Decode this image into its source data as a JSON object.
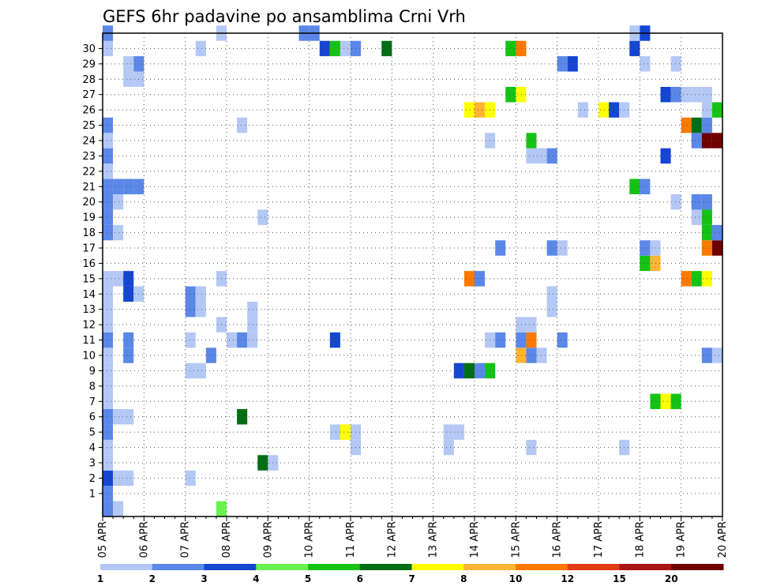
{
  "chart_data": {
    "type": "heatmap",
    "title": "GEFS 6hr padavine po ansamblima Crni Vrh",
    "x_tick_labels": [
      "05 APR",
      "06 APR",
      "07 APR",
      "08 APR",
      "09 APR",
      "10 APR",
      "11 APR",
      "12 APR",
      "13 APR",
      "14 APR",
      "15 APR",
      "16 APR",
      "17 APR",
      "18 APR",
      "19 APR",
      "20 APR"
    ],
    "y_tick_labels": [
      "1",
      "2",
      "3",
      "4",
      "5",
      "6",
      "7",
      "8",
      "9",
      "10",
      "11",
      "12",
      "13",
      "14",
      "15",
      "16",
      "17",
      "18",
      "19",
      "20",
      "21",
      "22",
      "23",
      "24",
      "25",
      "26",
      "27",
      "28",
      "29",
      "30"
    ],
    "xlim": [
      0,
      60
    ],
    "ylim": [
      0,
      30
    ],
    "x_unit": "6h steps since 05 APR 00z",
    "y_unit": "ensemble member",
    "grid": "dotted",
    "color_scale": {
      "labels": [
        "1",
        "2",
        "3",
        "4",
        "5",
        "6",
        "7",
        "8",
        "10",
        "12",
        "15",
        "20"
      ],
      "colors": [
        "#b4c8f5",
        "#5a87e8",
        "#1446d2",
        "#6cf250",
        "#14c314",
        "#006e14",
        "#ffff00",
        "#ffb432",
        "#ff7800",
        "#e13c14",
        "#aa1414",
        "#6e0000"
      ]
    },
    "cells": [
      {
        "x": 1,
        "y": 0,
        "v": 2
      },
      {
        "x": 2,
        "y": 0,
        "v": 1
      },
      {
        "x": 12,
        "y": 0,
        "v": 4
      },
      {
        "x": 1,
        "y": 1,
        "v": 2
      },
      {
        "x": 1,
        "y": 2,
        "v": 3
      },
      {
        "x": 2,
        "y": 2,
        "v": 1
      },
      {
        "x": 3,
        "y": 2,
        "v": 1
      },
      {
        "x": 9,
        "y": 2,
        "v": 1
      },
      {
        "x": 1,
        "y": 3,
        "v": 1
      },
      {
        "x": 16,
        "y": 3,
        "v": 6
      },
      {
        "x": 17,
        "y": 3,
        "v": 1
      },
      {
        "x": 1,
        "y": 4,
        "v": 1
      },
      {
        "x": 25,
        "y": 4,
        "v": 1
      },
      {
        "x": 34,
        "y": 4,
        "v": 1
      },
      {
        "x": 42,
        "y": 4,
        "v": 1
      },
      {
        "x": 51,
        "y": 4,
        "v": 1
      },
      {
        "x": 1,
        "y": 5,
        "v": 2
      },
      {
        "x": 23,
        "y": 5,
        "v": 1
      },
      {
        "x": 24,
        "y": 5,
        "v": 7
      },
      {
        "x": 25,
        "y": 5,
        "v": 1
      },
      {
        "x": 34,
        "y": 5,
        "v": 1
      },
      {
        "x": 35,
        "y": 5,
        "v": 1
      },
      {
        "x": 1,
        "y": 6,
        "v": 2
      },
      {
        "x": 2,
        "y": 6,
        "v": 1
      },
      {
        "x": 3,
        "y": 6,
        "v": 1
      },
      {
        "x": 14,
        "y": 6,
        "v": 6
      },
      {
        "x": 1,
        "y": 7,
        "v": 1
      },
      {
        "x": 54,
        "y": 7,
        "v": 5
      },
      {
        "x": 55,
        "y": 7,
        "v": 7
      },
      {
        "x": 56,
        "y": 7,
        "v": 5
      },
      {
        "x": 1,
        "y": 8,
        "v": 1
      },
      {
        "x": 1,
        "y": 9,
        "v": 1
      },
      {
        "x": 9,
        "y": 9,
        "v": 1
      },
      {
        "x": 10,
        "y": 9,
        "v": 1
      },
      {
        "x": 35,
        "y": 9,
        "v": 3
      },
      {
        "x": 36,
        "y": 9,
        "v": 6
      },
      {
        "x": 37,
        "y": 9,
        "v": 2
      },
      {
        "x": 38,
        "y": 9,
        "v": 5
      },
      {
        "x": 1,
        "y": 10,
        "v": 1
      },
      {
        "x": 3,
        "y": 10,
        "v": 2
      },
      {
        "x": 11,
        "y": 10,
        "v": 2
      },
      {
        "x": 41,
        "y": 10,
        "v": 8
      },
      {
        "x": 42,
        "y": 10,
        "v": 2
      },
      {
        "x": 43,
        "y": 10,
        "v": 1
      },
      {
        "x": 59,
        "y": 10,
        "v": 2
      },
      {
        "x": 60,
        "y": 10,
        "v": 1
      },
      {
        "x": 1,
        "y": 11,
        "v": 2
      },
      {
        "x": 3,
        "y": 11,
        "v": 2
      },
      {
        "x": 9,
        "y": 11,
        "v": 1
      },
      {
        "x": 13,
        "y": 11,
        "v": 1
      },
      {
        "x": 14,
        "y": 11,
        "v": 2
      },
      {
        "x": 15,
        "y": 11,
        "v": 1
      },
      {
        "x": 23,
        "y": 11,
        "v": 3
      },
      {
        "x": 38,
        "y": 11,
        "v": 1
      },
      {
        "x": 39,
        "y": 11,
        "v": 2
      },
      {
        "x": 41,
        "y": 11,
        "v": 2
      },
      {
        "x": 42,
        "y": 11,
        "v": 10
      },
      {
        "x": 45,
        "y": 11,
        "v": 2
      },
      {
        "x": 1,
        "y": 12,
        "v": 1
      },
      {
        "x": 12,
        "y": 12,
        "v": 1
      },
      {
        "x": 15,
        "y": 12,
        "v": 1
      },
      {
        "x": 41,
        "y": 12,
        "v": 1
      },
      {
        "x": 42,
        "y": 12,
        "v": 1
      },
      {
        "x": 1,
        "y": 13,
        "v": 1
      },
      {
        "x": 9,
        "y": 13,
        "v": 2
      },
      {
        "x": 10,
        "y": 13,
        "v": 1
      },
      {
        "x": 15,
        "y": 13,
        "v": 1
      },
      {
        "x": 44,
        "y": 13,
        "v": 1
      },
      {
        "x": 1,
        "y": 14,
        "v": 1
      },
      {
        "x": 3,
        "y": 14,
        "v": 3
      },
      {
        "x": 4,
        "y": 14,
        "v": 1
      },
      {
        "x": 9,
        "y": 14,
        "v": 2
      },
      {
        "x": 10,
        "y": 14,
        "v": 1
      },
      {
        "x": 44,
        "y": 14,
        "v": 1
      },
      {
        "x": 1,
        "y": 15,
        "v": 1
      },
      {
        "x": 2,
        "y": 15,
        "v": 1
      },
      {
        "x": 3,
        "y": 15,
        "v": 3
      },
      {
        "x": 12,
        "y": 15,
        "v": 1
      },
      {
        "x": 36,
        "y": 15,
        "v": 10
      },
      {
        "x": 37,
        "y": 15,
        "v": 2
      },
      {
        "x": 57,
        "y": 15,
        "v": 10
      },
      {
        "x": 58,
        "y": 15,
        "v": 5
      },
      {
        "x": 59,
        "y": 15,
        "v": 7
      },
      {
        "x": 53,
        "y": 16,
        "v": 5
      },
      {
        "x": 54,
        "y": 16,
        "v": 8
      },
      {
        "x": 39,
        "y": 17,
        "v": 2
      },
      {
        "x": 44,
        "y": 17,
        "v": 2
      },
      {
        "x": 45,
        "y": 17,
        "v": 1
      },
      {
        "x": 53,
        "y": 17,
        "v": 2
      },
      {
        "x": 54,
        "y": 17,
        "v": 1
      },
      {
        "x": 59,
        "y": 17,
        "v": 10
      },
      {
        "x": 60,
        "y": 17,
        "v": 20
      },
      {
        "x": 1,
        "y": 18,
        "v": 2
      },
      {
        "x": 2,
        "y": 18,
        "v": 1
      },
      {
        "x": 59,
        "y": 18,
        "v": 5
      },
      {
        "x": 60,
        "y": 18,
        "v": 2
      },
      {
        "x": 1,
        "y": 19,
        "v": 2
      },
      {
        "x": 16,
        "y": 19,
        "v": 1
      },
      {
        "x": 58,
        "y": 19,
        "v": 1
      },
      {
        "x": 59,
        "y": 19,
        "v": 5
      },
      {
        "x": 1,
        "y": 20,
        "v": 2
      },
      {
        "x": 2,
        "y": 20,
        "v": 1
      },
      {
        "x": 56,
        "y": 20,
        "v": 1
      },
      {
        "x": 58,
        "y": 20,
        "v": 2
      },
      {
        "x": 59,
        "y": 20,
        "v": 2
      },
      {
        "x": 1,
        "y": 21,
        "v": 2
      },
      {
        "x": 2,
        "y": 21,
        "v": 2
      },
      {
        "x": 3,
        "y": 21,
        "v": 2
      },
      {
        "x": 4,
        "y": 21,
        "v": 2
      },
      {
        "x": 52,
        "y": 21,
        "v": 5
      },
      {
        "x": 53,
        "y": 21,
        "v": 2
      },
      {
        "x": 1,
        "y": 22,
        "v": 1
      },
      {
        "x": 1,
        "y": 23,
        "v": 2
      },
      {
        "x": 42,
        "y": 23,
        "v": 1
      },
      {
        "x": 43,
        "y": 23,
        "v": 1
      },
      {
        "x": 44,
        "y": 23,
        "v": 2
      },
      {
        "x": 55,
        "y": 23,
        "v": 3
      },
      {
        "x": 1,
        "y": 24,
        "v": 1
      },
      {
        "x": 38,
        "y": 24,
        "v": 1
      },
      {
        "x": 42,
        "y": 24,
        "v": 5
      },
      {
        "x": 58,
        "y": 24,
        "v": 2
      },
      {
        "x": 59,
        "y": 24,
        "v": 20
      },
      {
        "x": 60,
        "y": 24,
        "v": 20
      },
      {
        "x": 1,
        "y": 25,
        "v": 2
      },
      {
        "x": 14,
        "y": 25,
        "v": 1
      },
      {
        "x": 57,
        "y": 25,
        "v": 10
      },
      {
        "x": 58,
        "y": 25,
        "v": 6
      },
      {
        "x": 59,
        "y": 25,
        "v": 2
      },
      {
        "x": 36,
        "y": 26,
        "v": 7
      },
      {
        "x": 37,
        "y": 26,
        "v": 8
      },
      {
        "x": 38,
        "y": 26,
        "v": 7
      },
      {
        "x": 47,
        "y": 26,
        "v": 1
      },
      {
        "x": 49,
        "y": 26,
        "v": 7
      },
      {
        "x": 50,
        "y": 26,
        "v": 3
      },
      {
        "x": 51,
        "y": 26,
        "v": 1
      },
      {
        "x": 59,
        "y": 26,
        "v": 1
      },
      {
        "x": 60,
        "y": 26,
        "v": 5
      },
      {
        "x": 40,
        "y": 27,
        "v": 5
      },
      {
        "x": 41,
        "y": 27,
        "v": 7
      },
      {
        "x": 55,
        "y": 27,
        "v": 3
      },
      {
        "x": 56,
        "y": 27,
        "v": 2
      },
      {
        "x": 57,
        "y": 27,
        "v": 1
      },
      {
        "x": 58,
        "y": 27,
        "v": 1
      },
      {
        "x": 59,
        "y": 27,
        "v": 1
      },
      {
        "x": 3,
        "y": 28,
        "v": 1
      },
      {
        "x": 4,
        "y": 28,
        "v": 1
      },
      {
        "x": 3,
        "y": 29,
        "v": 1
      },
      {
        "x": 4,
        "y": 29,
        "v": 2
      },
      {
        "x": 45,
        "y": 29,
        "v": 2
      },
      {
        "x": 46,
        "y": 29,
        "v": 3
      },
      {
        "x": 53,
        "y": 29,
        "v": 1
      },
      {
        "x": 56,
        "y": 29,
        "v": 1
      },
      {
        "x": 1,
        "y": 30,
        "v": 1
      },
      {
        "x": 10,
        "y": 30,
        "v": 1
      },
      {
        "x": 22,
        "y": 30,
        "v": 3
      },
      {
        "x": 23,
        "y": 30,
        "v": 5
      },
      {
        "x": 24,
        "y": 30,
        "v": 1
      },
      {
        "x": 25,
        "y": 30,
        "v": 2
      },
      {
        "x": 28,
        "y": 30,
        "v": 6
      },
      {
        "x": 40,
        "y": 30,
        "v": 5
      },
      {
        "x": 41,
        "y": 30,
        "v": 10
      },
      {
        "x": 52,
        "y": 30,
        "v": 3
      },
      {
        "x": 1,
        "y": 31,
        "v": 2
      },
      {
        "x": 12,
        "y": 31,
        "v": 1
      },
      {
        "x": 20,
        "y": 31,
        "v": 2
      },
      {
        "x": 21,
        "y": 31,
        "v": 2
      },
      {
        "x": 52,
        "y": 31,
        "v": 1
      },
      {
        "x": 53,
        "y": 31,
        "v": 3
      }
    ]
  }
}
